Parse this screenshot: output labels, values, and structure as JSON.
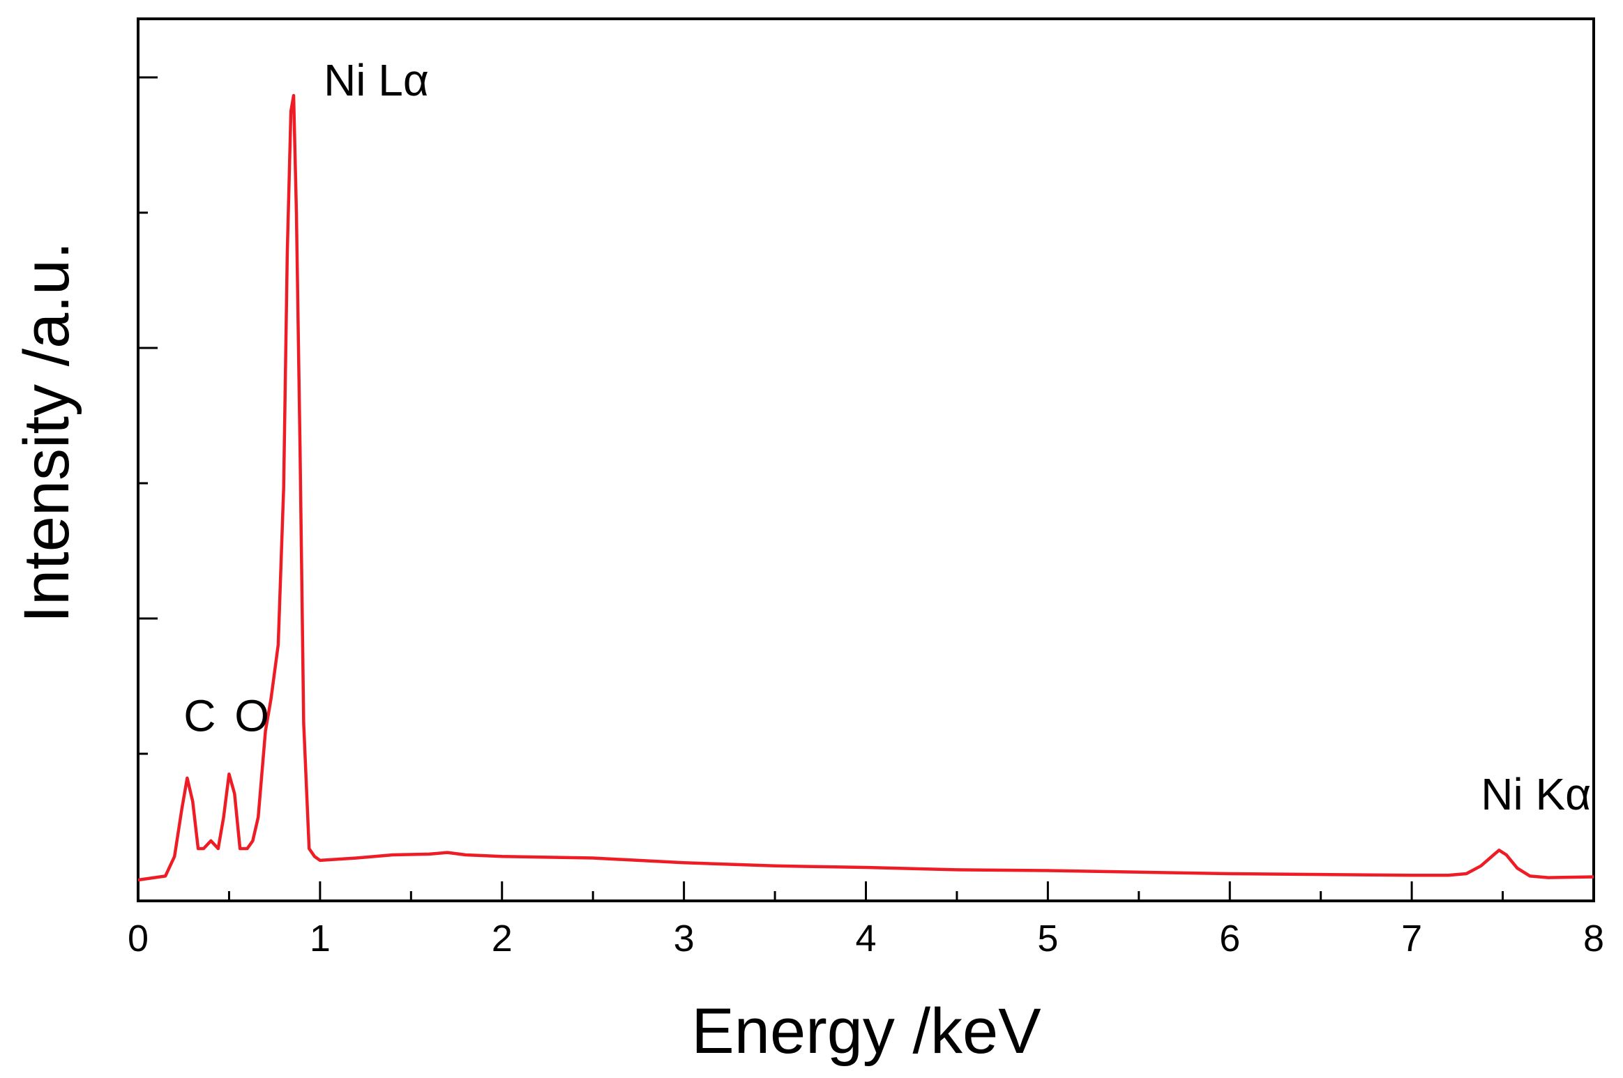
{
  "chart_data": {
    "type": "line",
    "title": "",
    "xlabel": "Energy /keV",
    "ylabel": "Intensity /a.u.",
    "xlim": [
      0,
      8
    ],
    "ylim": [
      0,
      1.08
    ],
    "grid": false,
    "legend": "none",
    "x_ticks": [
      {
        "value": 0,
        "label": "0"
      },
      {
        "value": 1,
        "label": "1"
      },
      {
        "value": 2,
        "label": "2"
      },
      {
        "value": 3,
        "label": "3"
      },
      {
        "value": 4,
        "label": "4"
      },
      {
        "value": 5,
        "label": "5"
      },
      {
        "value": 6,
        "label": "6"
      },
      {
        "value": 7,
        "label": "7"
      },
      {
        "value": 8,
        "label": "8"
      }
    ],
    "y_ticks_labeled": false,
    "annotations": [
      {
        "id": "c",
        "text": "C",
        "x": 0.25,
        "y": 0.19
      },
      {
        "id": "o",
        "text": "O",
        "x": 0.53,
        "y": 0.19
      },
      {
        "id": "ni-la",
        "text": "Ni Lα",
        "x": 1.02,
        "y": 1.0
      },
      {
        "id": "ni-ka",
        "text": "Ni Kα",
        "x": 7.38,
        "y": 0.09
      }
    ],
    "series": [
      {
        "color": "#ee1c25",
        "x": [
          0,
          0.15,
          0.2,
          0.24,
          0.27,
          0.3,
          0.33,
          0.36,
          0.4,
          0.44,
          0.47,
          0.5,
          0.53,
          0.56,
          0.6,
          0.63,
          0.66,
          0.7,
          0.73,
          0.77,
          0.8,
          0.82,
          0.84,
          0.855,
          0.87,
          0.89,
          0.91,
          0.94,
          0.97,
          1.0,
          1.2,
          1.4,
          1.6,
          1.7,
          1.8,
          2.0,
          2.5,
          3.0,
          3.5,
          4.0,
          4.5,
          5.0,
          5.5,
          6.0,
          6.5,
          7.0,
          7.2,
          7.3,
          7.38,
          7.45,
          7.48,
          7.52,
          7.58,
          7.65,
          7.75,
          8.0
        ],
        "y": [
          0.0,
          0.005,
          0.03,
          0.09,
          0.13,
          0.1,
          0.04,
          0.04,
          0.05,
          0.04,
          0.08,
          0.135,
          0.11,
          0.04,
          0.04,
          0.05,
          0.08,
          0.19,
          0.23,
          0.3,
          0.5,
          0.8,
          0.98,
          1.0,
          0.85,
          0.55,
          0.2,
          0.04,
          0.03,
          0.025,
          0.028,
          0.032,
          0.033,
          0.035,
          0.032,
          0.03,
          0.028,
          0.022,
          0.018,
          0.016,
          0.013,
          0.012,
          0.01,
          0.008,
          0.007,
          0.006,
          0.006,
          0.008,
          0.018,
          0.032,
          0.038,
          0.032,
          0.015,
          0.005,
          0.003,
          0.004
        ]
      }
    ]
  }
}
